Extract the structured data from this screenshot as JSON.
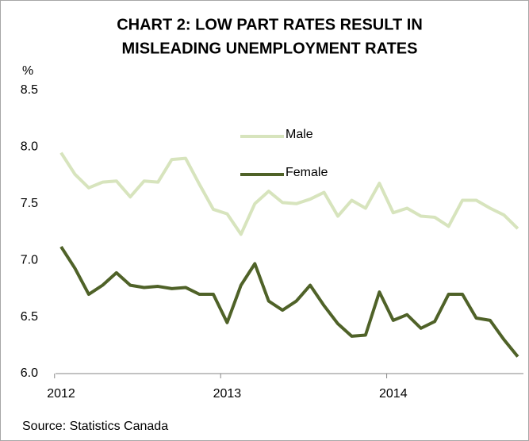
{
  "chart_data": {
    "type": "line",
    "title": [
      "CHART 2: LOW PART RATES RESULT IN",
      "MISLEADING UNEMPLOYMENT RATES"
    ],
    "ylabel": "%",
    "source": "Source: Statistics Canada",
    "categories": [
      "2012",
      null,
      null,
      null,
      null,
      null,
      null,
      null,
      null,
      null,
      null,
      null,
      "2013",
      null,
      null,
      null,
      null,
      null,
      null,
      null,
      null,
      null,
      null,
      null,
      "2014",
      null,
      null,
      null,
      null,
      null,
      null,
      null,
      null,
      null
    ],
    "series": [
      {
        "name": "Male",
        "color": "#d7e4bd",
        "values": [
          7.95,
          7.76,
          7.64,
          7.69,
          7.7,
          7.56,
          7.7,
          7.69,
          7.89,
          7.9,
          7.67,
          7.45,
          7.41,
          7.23,
          7.5,
          7.61,
          7.51,
          7.5,
          7.54,
          7.6,
          7.39,
          7.53,
          7.46,
          7.68,
          7.42,
          7.46,
          7.39,
          7.38,
          7.3,
          7.53,
          7.53,
          7.46,
          7.4,
          7.28
        ]
      },
      {
        "name": "Female",
        "color": "#4f6228",
        "values": [
          7.12,
          6.93,
          6.7,
          6.78,
          6.89,
          6.78,
          6.76,
          6.77,
          6.75,
          6.76,
          6.7,
          6.7,
          6.45,
          6.78,
          6.97,
          6.64,
          6.56,
          6.64,
          6.78,
          6.6,
          6.44,
          6.33,
          6.34,
          6.72,
          6.47,
          6.52,
          6.4,
          6.46,
          6.7,
          6.7,
          6.49,
          6.47,
          6.3,
          6.15
        ]
      }
    ],
    "ylim": [
      6.0,
      8.5
    ],
    "yticks": [
      {
        "value": 6.0,
        "label": "6.0"
      },
      6.5,
      {
        "value": 7.0,
        "label": "7.0"
      },
      7.5,
      {
        "value": 8.0,
        "label": "8.0"
      },
      8.5
    ],
    "legend": "inside",
    "grid": false
  }
}
